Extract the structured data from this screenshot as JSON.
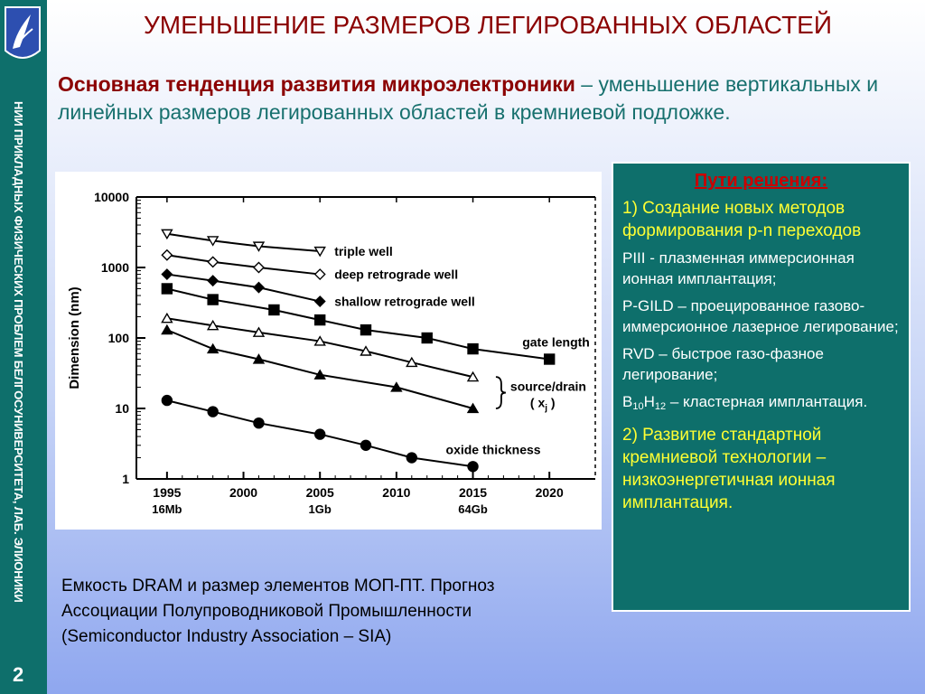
{
  "sidebar": {
    "vertical_text": "НИИ ПРИКЛАДНЫХ ФИЗИЧЕСКИХ ПРОБЛЕМ БЕЛГОСУНИВЕРСИТЕТА, ЛАБ. ЭЛИОНИКИ",
    "page_number": "2"
  },
  "title": "УМЕНЬШЕНИЕ РАЗМЕРОВ ЛЕГИРОВАННЫХ ОБЛАСТЕЙ",
  "subtitle": {
    "emphasis": "Основная тенденция развития микроэлектроники",
    "rest": " – уменьшение вертикальных и линейных размеров легированных областей в кремниевой подложке."
  },
  "caption": "Емкость DRAM и размер элементов МОП-ПТ. Прогноз Ассоциации Полупроводниковой Промышленности (Semiconductor Industry Association – SIA)",
  "panel": {
    "title": "Пути решения:",
    "item1": "1) Создание новых методов формирования p-n переходов",
    "piii": "PIII - плазменная иммерсионная ионная имплантация;",
    "pgild": "P-GILD – проецированное газово-иммерсионное лазерное легирование;",
    "rvd": "RVD – быстрое газо-фазное легирование;",
    "cluster_b": "B",
    "cluster_b_sub": "10",
    "cluster_h": "H",
    "cluster_h_sub": "12",
    "cluster_rest": " – кластерная имплантация.",
    "item2": "2) Развитие стандартной кремниевой технологии – низкоэнергетичная ионная имплантация."
  },
  "chart_data": {
    "type": "line",
    "ylabel": "Dimension (nm)",
    "yscale": "log",
    "ylim": [
      1,
      10000
    ],
    "yticks": [
      "10000",
      "1000",
      "100",
      "10",
      "1"
    ],
    "xlim": [
      1993,
      2023
    ],
    "xticks": [
      {
        "year": "1995",
        "sub": "16Mb"
      },
      {
        "year": "2000",
        "sub": ""
      },
      {
        "year": "2005",
        "sub": "1Gb"
      },
      {
        "year": "2010",
        "sub": ""
      },
      {
        "year": "2015",
        "sub": "64Gb"
      },
      {
        "year": "2020",
        "sub": ""
      }
    ],
    "series": [
      {
        "name": "triple well",
        "marker": "triangle-down-open",
        "label": "triple well",
        "x": [
          1995,
          1998,
          2001,
          2005
        ],
        "y": [
          3000,
          2400,
          2000,
          1700
        ]
      },
      {
        "name": "deep retrograde well",
        "marker": "diamond-open",
        "label": "deep retrograde well",
        "x": [
          1995,
          1998,
          2001,
          2005
        ],
        "y": [
          1500,
          1200,
          1000,
          800
        ]
      },
      {
        "name": "shallow retrograde well",
        "marker": "diamond-filled",
        "label": "shallow retrograde well",
        "x": [
          1995,
          1998,
          2001,
          2005
        ],
        "y": [
          800,
          650,
          520,
          330
        ]
      },
      {
        "name": "gate length",
        "marker": "square-filled",
        "label": "gate length",
        "x": [
          1995,
          1998,
          2002,
          2005,
          2008,
          2012,
          2015,
          2020
        ],
        "y": [
          500,
          350,
          250,
          180,
          130,
          100,
          70,
          50
        ]
      },
      {
        "name": "source/drain upper",
        "marker": "triangle-up-open",
        "label": "",
        "x": [
          1995,
          1998,
          2001,
          2005,
          2008,
          2011,
          2015
        ],
        "y": [
          190,
          150,
          120,
          90,
          65,
          45,
          28
        ]
      },
      {
        "name": "source/drain lower",
        "marker": "triangle-up-filled",
        "label": "",
        "x": [
          1995,
          1998,
          2001,
          2005,
          2010,
          2015
        ],
        "y": [
          130,
          70,
          50,
          30,
          20,
          10
        ]
      },
      {
        "name": "oxide thickness",
        "marker": "circle-filled",
        "label": "oxide thickness",
        "x": [
          1995,
          1998,
          2001,
          2005,
          2008,
          2011,
          2015
        ],
        "y": [
          13,
          9,
          6.2,
          4.3,
          3,
          2,
          1.5
        ]
      }
    ],
    "source_drain_label": "source/drain",
    "xj_label": "( x",
    "xj_sub": "j",
    "xj_close": " )"
  }
}
